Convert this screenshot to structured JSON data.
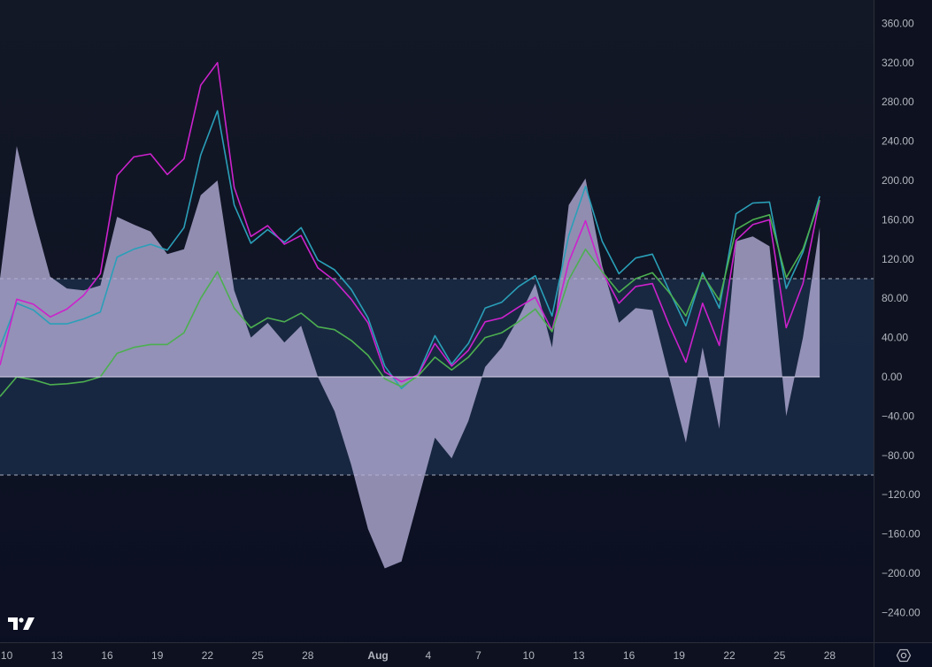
{
  "chart_data": {
    "type": "area",
    "ylim": [
      -270,
      380
    ],
    "y_ticks": [
      "360.00",
      "320.00",
      "280.00",
      "240.00",
      "200.00",
      "160.00",
      "120.00",
      "80.00",
      "40.00",
      "0.00",
      "−40.00",
      "−80.00",
      "−120.00",
      "−160.00",
      "−200.00",
      "−240.00"
    ],
    "y_tick_values": [
      360,
      320,
      280,
      240,
      200,
      160,
      120,
      80,
      40,
      0,
      -40,
      -80,
      -120,
      -160,
      -200,
      -240
    ],
    "x_ticks": [
      {
        "label": "10",
        "t": 0.4,
        "bold": false
      },
      {
        "label": "13",
        "t": 3.4,
        "bold": false
      },
      {
        "label": "16",
        "t": 6.4,
        "bold": false
      },
      {
        "label": "19",
        "t": 9.4,
        "bold": false
      },
      {
        "label": "22",
        "t": 12.4,
        "bold": false
      },
      {
        "label": "25",
        "t": 15.4,
        "bold": false
      },
      {
        "label": "28",
        "t": 18.4,
        "bold": false
      },
      {
        "label": "Aug",
        "t": 22.6,
        "bold": true
      },
      {
        "label": "4",
        "t": 25.6,
        "bold": false
      },
      {
        "label": "7",
        "t": 28.6,
        "bold": false
      },
      {
        "label": "10",
        "t": 31.6,
        "bold": false
      },
      {
        "label": "13",
        "t": 34.6,
        "bold": false
      },
      {
        "label": "16",
        "t": 37.6,
        "bold": false
      },
      {
        "label": "19",
        "t": 40.6,
        "bold": false
      },
      {
        "label": "22",
        "t": 43.6,
        "bold": false
      },
      {
        "label": "25",
        "t": 46.6,
        "bold": false
      },
      {
        "label": "28",
        "t": 49.6,
        "bold": false
      }
    ],
    "band": {
      "upper": 100,
      "lower": -100
    },
    "area_values": [
      100,
      235,
      165,
      102,
      90,
      88,
      93,
      163,
      155,
      148,
      125,
      130,
      185,
      200,
      88,
      40,
      55,
      35,
      52,
      0,
      -35,
      -90,
      -155,
      -195,
      -188,
      -125,
      -62,
      -83,
      -45,
      10,
      30,
      60,
      95,
      30,
      175,
      202,
      113,
      55,
      70,
      68,
      0,
      -67,
      30,
      -53,
      138,
      143,
      133,
      -40,
      40,
      152
    ],
    "series": [
      {
        "color": "#2a9fb8",
        "values": [
          30,
          75,
          68,
          54,
          54,
          59,
          66,
          122,
          130,
          135,
          129,
          152,
          226,
          271,
          175,
          136,
          150,
          137,
          152,
          119,
          109,
          89,
          60,
          11,
          -12,
          3,
          42,
          13,
          34,
          70,
          76,
          92,
          103,
          62,
          144,
          194,
          138,
          105,
          121,
          125,
          88,
          52,
          106,
          70,
          166,
          177,
          178,
          90,
          127,
          184
        ]
      },
      {
        "color": "#cc22cc",
        "values": [
          12,
          79,
          74,
          61,
          69,
          83,
          105,
          205,
          224,
          227,
          206,
          222,
          297,
          320,
          193,
          143,
          154,
          135,
          144,
          111,
          98,
          79,
          55,
          5,
          -5,
          2,
          34,
          11,
          27,
          56,
          60,
          71,
          81,
          47,
          117,
          159,
          107,
          75,
          92,
          95,
          53,
          15,
          75,
          32,
          139,
          155,
          160,
          50,
          95,
          180
        ]
      },
      {
        "color": "#4caf50",
        "values": [
          -20,
          0,
          -3,
          -8,
          -7,
          -5,
          0,
          24,
          30,
          33,
          33,
          45,
          80,
          107,
          70,
          50,
          60,
          56,
          65,
          51,
          48,
          37,
          22,
          -2,
          -10,
          1,
          20,
          7,
          20,
          40,
          45,
          56,
          69,
          46,
          99,
          130,
          107,
          86,
          100,
          106,
          86,
          62,
          104,
          78,
          150,
          160,
          165,
          101,
          130,
          180
        ]
      }
    ]
  },
  "icons": {
    "logo": "tradingview-logo-icon",
    "settings": "settings-icon"
  }
}
